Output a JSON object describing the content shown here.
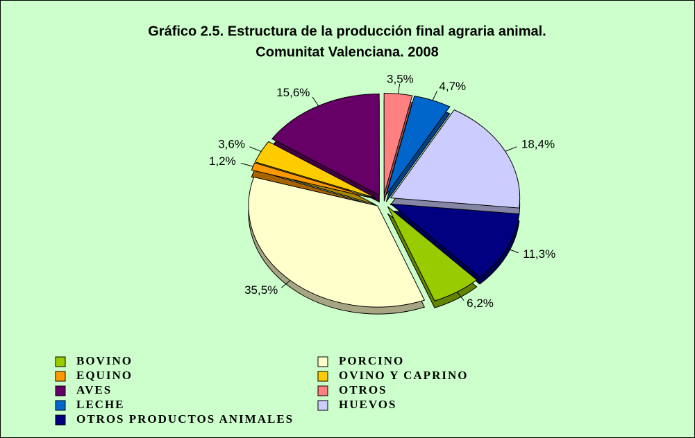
{
  "chart_data": {
    "type": "pie",
    "title": "Gráfico 2.5. Estructura de la producción final agraria animal.",
    "subtitle": "Comunitat Valenciana. 2008",
    "categories": [
      "BOVINO",
      "PORCINO",
      "EQUINO",
      "OVINO Y CAPRINO",
      "AVES",
      "OTROS",
      "LECHE",
      "HUEVOS",
      "OTROS PRODUCTOS ANIMALES"
    ],
    "values": [
      6.2,
      35.5,
      1.2,
      3.6,
      15.6,
      3.5,
      4.7,
      18.4,
      11.3
    ],
    "value_labels": [
      "6,2%",
      "35,5%",
      "1,2%",
      "3,6%",
      "15,6%",
      "3,5%",
      "4,7%",
      "18,4%",
      "11,3%"
    ],
    "colors": [
      "#99cc00",
      "#ffffcc",
      "#ff9900",
      "#ffcc00",
      "#660066",
      "#ff8080",
      "#0066cc",
      "#ccccff",
      "#000080"
    ],
    "legend": "bottom"
  }
}
